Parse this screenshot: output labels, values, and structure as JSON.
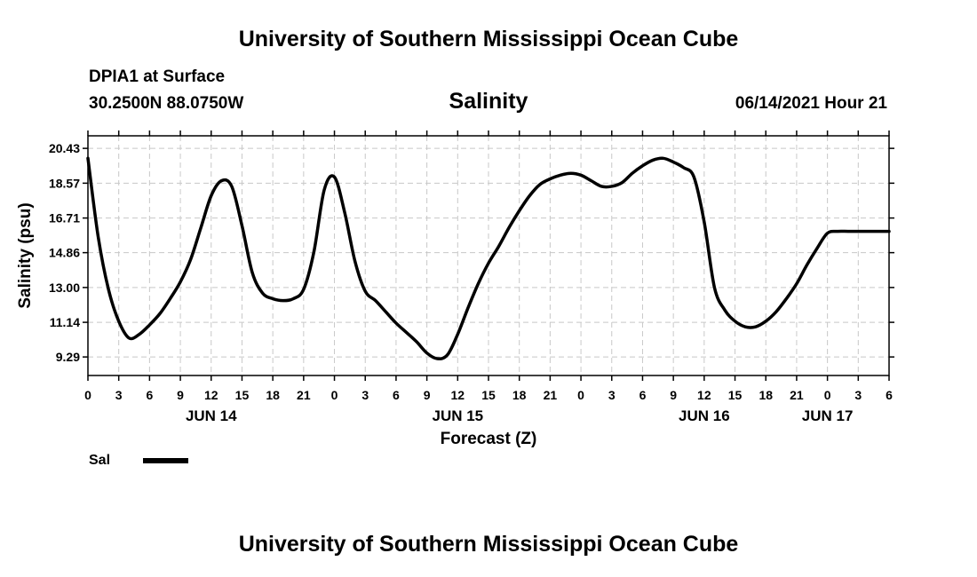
{
  "header": {
    "title": "University of Southern Mississippi Ocean Cube",
    "station": "DPIA1 at Surface",
    "coords": "30.2500N  88.0750W",
    "timestamp": "06/14/2021 Hour 21"
  },
  "footer": {
    "title": "University of Southern Mississippi Ocean Cube"
  },
  "chart_data": {
    "type": "line",
    "title": "Salinity",
    "xlabel": "Forecast (Z)",
    "ylabel": "Salinity (psu)",
    "xlim": [
      0,
      78
    ],
    "ylim": [
      8.3,
      21.1
    ],
    "yticks": [
      "20.43",
      "18.57",
      "16.71",
      "14.86",
      "13.00",
      "11.14",
      "9.29"
    ],
    "xticks": [
      "0",
      "3",
      "6",
      "9",
      "12",
      "15",
      "18",
      "21",
      "0",
      "3",
      "6",
      "9",
      "12",
      "15",
      "18",
      "21",
      "0",
      "3",
      "6",
      "9",
      "12",
      "15",
      "18",
      "21",
      "0",
      "3",
      "6"
    ],
    "date_labels": [
      {
        "hour": 12,
        "label": "JUN 14"
      },
      {
        "hour": 36,
        "label": "JUN 15"
      },
      {
        "hour": 60,
        "label": "JUN 16"
      },
      {
        "hour": 72,
        "label": "JUN 17"
      }
    ],
    "grid": true,
    "series": [
      {
        "name": "Sal",
        "color": "#000000",
        "x": [
          0,
          1,
          2,
          3,
          4,
          5,
          6,
          7,
          8,
          9,
          10,
          11,
          12,
          13,
          14,
          15,
          16,
          17,
          18,
          19,
          20,
          21,
          22,
          23,
          24,
          25,
          26,
          27,
          28,
          29,
          30,
          31,
          32,
          33,
          34,
          35,
          36,
          37,
          38,
          39,
          40,
          41,
          42,
          43,
          44,
          45,
          46,
          47,
          48,
          49,
          50,
          51,
          52,
          53,
          54,
          55,
          56,
          57,
          58,
          59,
          60,
          61,
          62,
          63,
          64,
          65,
          66,
          67,
          68,
          69,
          70,
          71,
          72,
          73,
          74,
          75,
          76,
          77,
          78
        ],
        "values": [
          19.9,
          15.7,
          12.9,
          11.2,
          10.3,
          10.5,
          11.0,
          11.6,
          12.4,
          13.3,
          14.5,
          16.2,
          17.9,
          18.7,
          18.4,
          16.3,
          13.8,
          12.7,
          12.4,
          12.3,
          12.4,
          12.9,
          14.9,
          18.2,
          18.9,
          17.0,
          14.4,
          12.8,
          12.3,
          11.7,
          11.1,
          10.6,
          10.1,
          9.5,
          9.2,
          9.4,
          10.5,
          11.9,
          13.2,
          14.3,
          15.2,
          16.2,
          17.1,
          17.9,
          18.5,
          18.8,
          19.0,
          19.1,
          19.0,
          18.7,
          18.4,
          18.4,
          18.6,
          19.1,
          19.5,
          19.8,
          19.9,
          19.7,
          19.4,
          18.9,
          16.5,
          13.0,
          11.8,
          11.2,
          10.9,
          10.9,
          11.2,
          11.7,
          12.4,
          13.2,
          14.2,
          15.1,
          15.9,
          16.0,
          16.0,
          16.0,
          16.0,
          16.0,
          16.0
        ]
      }
    ]
  }
}
